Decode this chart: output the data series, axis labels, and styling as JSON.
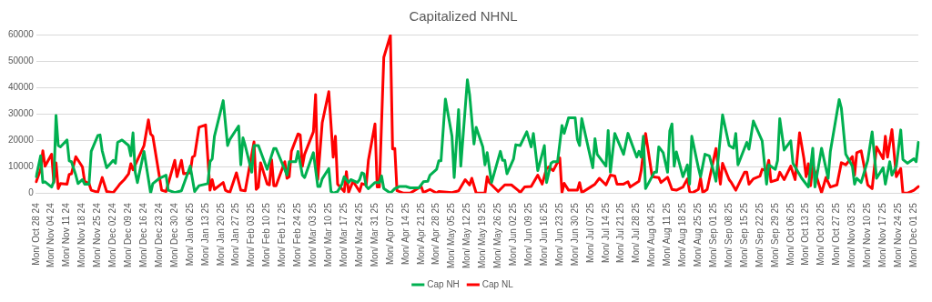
{
  "chart_data": {
    "type": "line",
    "title": "Capitalized NHNL",
    "ylim": [
      0,
      60000
    ],
    "yticks": [
      0,
      10000,
      20000,
      30000,
      40000,
      50000,
      60000
    ],
    "categories": [
      "Mon/ Oct 28 24",
      null,
      null,
      null,
      null,
      null,
      null,
      "Mon/ Nov 04 24",
      null,
      null,
      null,
      null,
      null,
      null,
      "Mon/ Nov 11 24",
      null,
      null,
      null,
      null,
      null,
      null,
      "Mon/ Nov 18 24",
      null,
      null,
      null,
      null,
      null,
      null,
      "Mon/ Nov 25 24",
      null,
      null,
      null,
      null,
      null,
      null,
      "Mon/ Dec 02 24",
      null,
      null,
      null,
      null,
      null,
      null,
      "Mon/ Dec 09 24",
      null,
      null,
      null,
      null,
      null,
      null,
      "Mon/ Dec 16 24",
      null,
      null,
      null,
      null,
      null,
      null,
      "Mon/ Dec 23 24",
      null,
      null,
      null,
      null,
      null,
      null,
      "Mon/ Dec 30 24",
      null,
      null,
      null,
      null,
      null,
      null,
      "Mon/ Jan 06 25",
      null,
      null,
      null,
      null,
      null,
      null,
      "Mon/ Jan 13 25",
      null,
      null,
      null,
      null,
      null,
      null,
      "Mon/ Jan 20 25",
      null,
      null,
      null,
      null,
      null,
      null,
      "Mon/ Jan 27 25",
      null,
      null,
      null,
      null,
      null,
      null,
      "Mon/ Feb 03 25",
      null,
      null,
      null,
      null,
      null,
      null,
      "Mon/ Feb 10 25",
      null,
      null,
      null,
      null,
      null,
      null,
      "Mon/ Feb 17 25",
      null,
      null,
      null,
      null,
      null,
      null,
      "Mon/ Feb 24 25",
      null,
      null,
      null,
      null,
      null,
      null,
      "Mon/ Mar 03 25",
      null,
      null,
      null,
      null,
      null,
      null,
      "Mon/ Mar 10 25",
      null,
      null,
      null,
      null,
      null,
      null,
      "Mon/ Mar 17 25",
      null,
      null,
      null,
      null,
      null,
      null,
      "Mon/ Mar 24 25",
      null,
      null,
      null,
      null,
      null,
      null,
      "Mon/ Mar 31 25",
      null,
      null,
      null,
      null,
      null,
      null,
      "Mon/ Apr 07 25",
      null,
      null,
      null,
      null,
      null,
      null,
      "Mon/ Apr 14 25",
      null,
      null,
      null,
      null,
      null,
      null,
      "Mon/ Apr 21 25",
      null,
      null,
      null,
      null,
      null,
      null,
      "Mon/ Apr 28 25",
      null,
      null,
      null,
      null,
      null,
      null,
      "Mon/ May 05 25",
      null,
      null,
      null,
      null,
      null,
      null,
      "Mon/ May 12 25",
      null,
      null,
      null,
      null,
      null,
      null,
      "Mon/ May 19 25",
      null,
      null,
      null,
      null,
      null,
      null,
      "Mon/ May 26 25",
      null,
      null,
      null,
      null,
      null,
      null,
      "Mon/ Jun 02 25",
      null,
      null,
      null,
      null,
      null,
      null,
      "Mon/ Jun 09 25",
      null,
      null,
      null,
      null,
      null,
      null,
      "Mon/ Jun 16 25",
      null,
      null,
      null,
      null,
      null,
      null,
      "Mon/ Jun 23 25",
      null,
      null,
      null,
      null,
      null,
      null,
      "Mon/ Jun 30 25",
      null,
      null,
      null,
      null,
      null,
      null,
      "Mon/ Jul 07 25",
      null,
      null,
      null,
      null,
      null,
      null,
      "Mon/ Jul 14 25",
      null,
      null,
      null,
      null,
      null,
      null,
      "Mon/ Jul 21 25",
      null,
      null,
      null,
      null,
      null,
      null,
      "Mon/ Jul 28 25",
      null,
      null,
      null,
      null,
      null,
      null,
      "Mon/ Aug 04 25",
      null,
      null,
      null,
      null,
      null,
      null,
      "Mon/ Aug 11 25",
      null,
      null,
      null,
      null,
      null,
      null,
      "Mon/ Aug 18 25",
      null,
      null,
      null,
      null,
      null,
      null,
      "Mon/ Aug 25 25",
      null,
      null,
      null,
      null,
      null,
      null,
      "Mon/ Sep 01 25",
      null,
      null,
      null,
      null,
      null,
      null,
      "Mon/ Sep 08 25",
      null,
      null,
      null,
      null,
      null,
      null,
      "Mon/ Sep 15 25",
      null,
      null,
      null,
      null,
      null,
      null,
      "Mon/ Sep 22 25",
      null,
      null,
      null,
      null,
      null,
      null,
      "Mon/ Sep 29 25",
      null,
      null,
      null,
      null,
      null,
      null,
      "Mon/ Oct 06 25",
      null,
      null,
      null,
      null,
      null,
      null,
      "Mon/ Oct 13 25",
      null,
      null,
      null,
      null,
      null,
      null,
      "Mon/ Oct 20 25",
      null,
      null,
      null,
      null,
      null,
      null,
      "Mon/ Oct 27 25",
      null,
      null,
      null,
      null,
      null,
      null,
      "Mon/ Nov 03 25",
      null,
      null,
      null,
      null,
      null,
      null,
      "Mon/ Nov 10 25",
      null,
      null,
      null,
      null,
      null,
      null,
      "Mon/ Nov 17 25",
      null,
      null,
      null,
      null,
      null,
      null,
      "Mon/ Nov 24 25",
      null,
      null,
      null,
      null,
      null,
      null,
      "Mon/ Dec 01 25",
      null,
      null
    ],
    "grid": "y",
    "legend": "bottom",
    "marker": "none",
    "line_style": "solid",
    "series": [
      {
        "name": "Cap NH",
        "color": "#00b050",
        "values": [
          6200,
          null,
          14100,
          4000,
          4300,
          null,
          null,
          2300,
          4500,
          29400,
          18000,
          17500,
          null,
          null,
          20100,
          12200,
          11900,
          null,
          6800,
          3600,
          null,
          5100,
          3400,
          null,
          3400,
          15800,
          null,
          null,
          21800,
          22000,
          16000,
          null,
          9600,
          null,
          null,
          12400,
          11300,
          19200,
          null,
          20100,
          null,
          null,
          18000,
          14100,
          22800,
          7900,
          4000,
          null,
          null,
          15800,
          null,
          null,
          0,
          3600,
          null,
          null,
          5600,
          null,
          null,
          6800,
          1100,
          null,
          null,
          200,
          null,
          null,
          900,
          null,
          null,
          null,
          10200,
          null,
          600,
          null,
          2800,
          null,
          null,
          null,
          3600,
          11900,
          13000,
          21500,
          null,
          null,
          null,
          35000,
          null,
          18000,
          20300,
          null,
          null,
          null,
          25400,
          10700,
          20900,
          18000,
          null,
          null,
          7900,
          18000,
          null,
          18000,
          null,
          null,
          null,
          9000,
          null,
          null,
          16900,
          16900,
          null,
          null,
          null,
          null,
          6800,
          11900,
          null,
          null,
          11900,
          15800,
          null,
          6800,
          5900,
          null,
          null,
          null,
          15300,
          null,
          2500,
          2500,
          5400,
          null,
          null,
          9300,
          600,
          0,
          null,
          600,
          null,
          3400,
          6200,
          null,
          4000,
          5100,
          null,
          null,
          4000,
          5100,
          7700,
          7300,
          2600,
          1700,
          null,
          null,
          4000,
          null,
          4000,
          6500,
          1700,
          null,
          null,
          0,
          null,
          1700,
          null,
          2500,
          null,
          null,
          2500,
          null,
          2000,
          null,
          null,
          null,
          2000,
          null,
          4300,
          null,
          4500,
          6800,
          null,
          null,
          9000,
          12200,
          12200,
          null,
          35600,
          null,
          null,
          21500,
          5900,
          null,
          31600,
          10200,
          null,
          null,
          42900,
          37300,
          null,
          18600,
          24900,
          null,
          null,
          17500,
          10700,
          15300,
          null,
          4000,
          null,
          null,
          null,
          15800,
          12400,
          12400,
          7300,
          null,
          null,
          13000,
          18300,
          null,
          18000,
          null,
          null,
          23200,
          null,
          17500,
          22600,
          null,
          8500,
          null,
          null,
          18000,
          4000,
          null,
          11300,
          11900,
          null,
          11900,
          null,
          25600,
          22600,
          null,
          28500,
          null,
          null,
          28500,
          20300,
          18000,
          28200,
          null,
          null,
          null,
          null,
          9600,
          20600,
          14700,
          null,
          null,
          null,
          10200,
          23700,
          7900,
          null,
          22600,
          null,
          null,
          null,
          14700,
          null,
          22600,
          null,
          null,
          null,
          13600,
          15800,
          13600,
          21500,
          1700,
          null,
          null,
          null,
          7900,
          7900,
          17500,
          null,
          15300,
          null,
          7900,
          23500,
          26200,
          10200,
          15600,
          null,
          null,
          6200,
          null,
          10700,
          3400,
          21500,
          null,
          null,
          9600,
          6200,
          null,
          14700,
          null,
          14100,
          null,
          7900,
          4500,
          null,
          null,
          29600,
          null,
          null,
          18000,
          null,
          17000,
          22600,
          10700,
          null,
          null,
          null,
          19200,
          16600,
          null,
          27300,
          null,
          null,
          null,
          19800,
          null,
          3400,
          10700,
          null,
          null,
          9000,
          12400,
          28200,
          null,
          16300,
          null,
          null,
          19800,
          11300,
          null,
          null,
          null,
          5600,
          null,
          null,
          2300,
          null,
          17000,
          2300,
          null,
          null,
          17000,
          null,
          null,
          5600,
          15800,
          null,
          null,
          null,
          35400,
          32200,
          null,
          14700,
          null,
          null,
          10200,
          3400,
          5600,
          null,
          4000,
          null,
          null,
          12400,
          null,
          23200,
          null,
          5600,
          null,
          null,
          9600,
          3400,
          null,
          11900,
          6800,
          null,
          10200,
          null,
          23900,
          12700,
          null,
          11300,
          null,
          null,
          13000,
          11900,
          19200
        ]
      },
      {
        "name": "Cap NL",
        "color": "#ff0000",
        "values": [
          4300,
          null,
          9000,
          16000,
          10200,
          null,
          null,
          14700,
          4000,
          11500,
          1700,
          3600,
          null,
          null,
          3400,
          7100,
          7300,
          null,
          13800,
          null,
          null,
          9900,
          4500,
          null,
          3600,
          1100,
          null,
          null,
          300,
          null,
          5900,
          null,
          600,
          null,
          null,
          200,
          null,
          2300,
          3400,
          null,
          5100,
          null,
          7300,
          11100,
          8800,
          null,
          null,
          null,
          null,
          18000,
          null,
          27700,
          22400,
          21500,
          null,
          null,
          null,
          1100,
          null,
          600,
          null,
          null,
          null,
          12400,
          6200,
          null,
          12400,
          7300,
          null,
          null,
          7700,
          13600,
          14100,
          null,
          24900,
          null,
          null,
          25800,
          null,
          1100,
          5100,
          1400,
          null,
          null,
          null,
          4000,
          1100,
          null,
          200,
          null,
          null,
          7700,
          null,
          1100,
          null,
          900,
          null,
          null,
          null,
          19400,
          1400,
          2300,
          11500,
          null,
          null,
          3400,
          3100,
          12700,
          2800,
          2800,
          null,
          null,
          null,
          11900,
          5600,
          6200,
          15800,
          null,
          null,
          22400,
          22000,
          10200,
          14700,
          null,
          null,
          null,
          23200,
          37300,
          5100,
          null,
          26600,
          null,
          null,
          38400,
          null,
          13600,
          21500,
          3400,
          null,
          null,
          600,
          8100,
          200,
          null,
          4500,
          null,
          null,
          600,
          3600,
          null,
          3100,
          12400,
          null,
          null,
          26200,
          2300,
          2300,
          null,
          51400,
          null,
          null,
          59700,
          16700,
          16900,
          900,
          null,
          null,
          0,
          null,
          null,
          0,
          null,
          null,
          null,
          null,
          2500,
          200,
          null,
          null,
          1400,
          null,
          null,
          0,
          600,
          null,
          null,
          null,
          null,
          null,
          200,
          null,
          null,
          900,
          null,
          null,
          5100,
          null,
          3100,
          5600,
          null,
          0,
          null,
          null,
          null,
          0,
          6200,
          4000,
          null,
          null,
          null,
          600,
          null,
          null,
          3100,
          null,
          null,
          3100,
          null,
          null,
          1100,
          200,
          null,
          2300,
          null,
          null,
          2500,
          null,
          null,
          6800,
          null,
          3400,
          null,
          9300,
          9900,
          null,
          8500,
          null,
          null,
          13300,
          200,
          3700,
          null,
          1100,
          null,
          null,
          null,
          1100,
          4000,
          200,
          null,
          null,
          null,
          2300,
          null,
          3400,
          null,
          5600,
          null,
          null,
          3100,
          null,
          6800,
          null,
          6500,
          3400,
          null,
          null,
          3400,
          null,
          4300,
          2300,
          null,
          null,
          null,
          4500,
          8500,
          null,
          22600,
          null,
          null,
          6200,
          null,
          null,
          5900,
          4000,
          null,
          null,
          6000,
          null,
          1400,
          null,
          1100,
          null,
          null,
          2300,
          null,
          5400,
          600,
          0,
          null,
          null,
          1400,
          5600,
          200,
          null,
          1400,
          null,
          null,
          null,
          16900,
          null,
          3400,
          11300,
          null,
          null,
          5100,
          4000,
          null,
          1100,
          null,
          null,
          null,
          7900,
          7900,
          3400,
          null,
          5400,
          null,
          null,
          6400,
          9000,
          null,
          8500,
          12400,
          4300,
          null,
          null,
          5100,
          7900,
          null,
          5100,
          null,
          null,
          10200,
          null,
          5100,
          null,
          22800,
          null,
          13000,
          6200,
          11100,
          2800,
          10700,
          null,
          null,
          null,
          200,
          null,
          5900,
          null,
          2300,
          null,
          null,
          3100,
          null,
          11500,
          null,
          10700,
          null,
          null,
          13800,
          6800,
          15300,
          null,
          16000,
          null,
          null,
          3100,
          null,
          1700,
          null,
          17500,
          null,
          null,
          13000,
          21500,
          13600,
          null,
          24000,
          null,
          6200,
          null,
          9300,
          0,
          null,
          0,
          null,
          null,
          1100,
          null,
          2500
        ]
      }
    ]
  }
}
